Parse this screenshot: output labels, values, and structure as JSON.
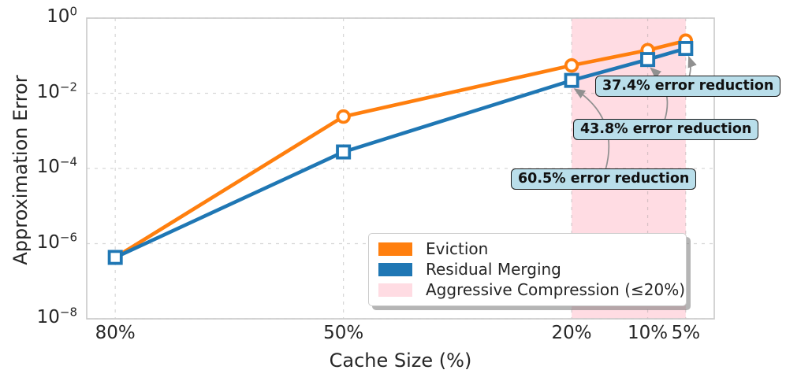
{
  "chart_data": {
    "type": "line",
    "title": "",
    "xlabel": "Cache Size (%)",
    "ylabel": "Approximation Error",
    "x_axis": {
      "scale": "linear-reversed",
      "values": [
        80,
        50,
        20,
        10,
        5
      ],
      "tick_labels": [
        "80%",
        "50%",
        "20%",
        "10%",
        "5%"
      ],
      "xlim": [
        83.75,
        1.25
      ]
    },
    "y_axis": {
      "scale": "log",
      "ylim": [
        1e-08,
        1
      ],
      "tick_exponents": [
        0,
        -2,
        -4,
        -6,
        -8
      ],
      "ticks": [
        {
          "base": "10",
          "exp": "0"
        },
        {
          "base": "10",
          "exp": "−2"
        },
        {
          "base": "10",
          "exp": "−4"
        },
        {
          "base": "10",
          "exp": "−6"
        },
        {
          "base": "10",
          "exp": "−8"
        }
      ]
    },
    "grid": "dashed",
    "series": [
      {
        "name": "Eviction",
        "color": "#ff7f0e",
        "marker": "circle",
        "values": [
          4.3e-07,
          0.0024,
          0.055,
          0.14,
          0.25
        ]
      },
      {
        "name": "Residual Merging",
        "color": "#1f77b4",
        "marker": "square",
        "values": [
          4.3e-07,
          0.000275,
          0.022,
          0.079,
          0.156
        ]
      }
    ],
    "shaded_region": {
      "label": "Aggressive Compression (≤20%)",
      "x_from": 20,
      "x_to": 5,
      "color": "rgba(255,185,200,0.5)"
    },
    "annotations": [
      {
        "label": "60.5% error reduction",
        "target_x": 20,
        "target_series": "Residual Merging"
      },
      {
        "label": "43.8% error reduction",
        "target_x": 10,
        "target_series": "Residual Merging"
      },
      {
        "label": "37.4% error reduction",
        "target_x": 5,
        "target_series": "Residual Merging"
      }
    ],
    "legend": {
      "position": "lower center",
      "entries": [
        "Eviction",
        "Residual Merging",
        "Aggressive Compression (≤20%)"
      ]
    }
  },
  "colors": {
    "accent_orange": "#ff7f0e",
    "accent_blue": "#1f77b4",
    "shade_pink": "rgba(255,185,200,0.5)",
    "grid": "rgba(140,140,140,0.35)",
    "spine": "#c9c9c9",
    "arrow": "#909090",
    "annotation_bg": "#b9deea",
    "marker_fill": "#ffffff"
  }
}
